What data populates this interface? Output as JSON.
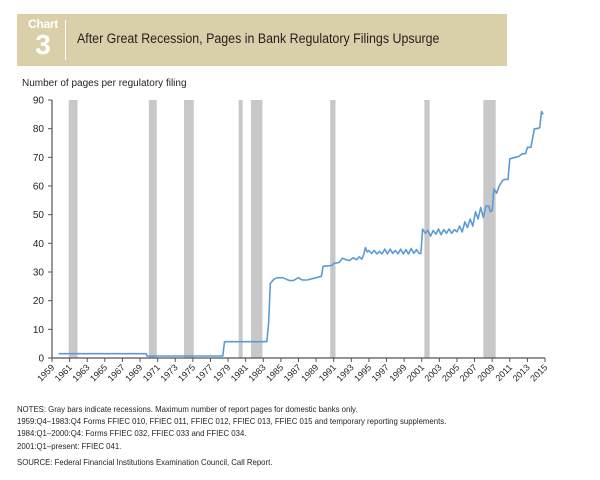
{
  "header": {
    "chart_word": "Chart",
    "chart_number": "3",
    "title": "After Great Recession, Pages in Bank Regulatory Filings Upsurge",
    "background_color": "#d9cfa8"
  },
  "chart_data": {
    "type": "line",
    "title": "After Great Recession, Pages in Bank Regulatory Filings Upsurge",
    "ylabel": "Number of pages per regulatory filing",
    "xlabel": "",
    "xlim": [
      1959,
      2015
    ],
    "ylim": [
      0,
      90
    ],
    "yticks": [
      0,
      10,
      20,
      30,
      40,
      50,
      60,
      70,
      80,
      90
    ],
    "xticks": [
      "1959",
      "1961",
      "1963",
      "1965",
      "1967",
      "1969",
      "1971",
      "1973",
      "1975",
      "1977",
      "1979",
      "1981",
      "1983",
      "1985",
      "1987",
      "1989",
      "1991",
      "1993",
      "1995",
      "1997",
      "1999",
      "2001",
      "2003",
      "2005",
      "2007",
      "2009",
      "2011",
      "2013",
      "2015"
    ],
    "line_color": "#5b9bd5",
    "recession_color": "#c8c8c8",
    "recessions": [
      [
        1960.9,
        1961.9
      ],
      [
        1970.0,
        1970.9
      ],
      [
        1974.0,
        1975.1
      ],
      [
        1980.2,
        1980.6
      ],
      [
        1981.6,
        1982.9
      ],
      [
        1990.6,
        1991.2
      ],
      [
        2001.3,
        2001.9
      ],
      [
        2008.0,
        2009.4
      ]
    ],
    "series": [
      {
        "name": "Pages per filing",
        "x": [
          1959.75,
          1969.7,
          1969.8,
          1978.4,
          1978.6,
          1983.4,
          1983.6,
          1983.8,
          1984.2,
          1984.6,
          1985.2,
          1985.6,
          1986.0,
          1986.4,
          1987.0,
          1987.4,
          1988.0,
          1989.6,
          1989.8,
          1990.8,
          1991.0,
          1991.6,
          1992.0,
          1992.4,
          1992.8,
          1993.2,
          1993.6,
          1993.9,
          1994.2,
          1994.4,
          1994.6,
          1994.8,
          1995.0,
          1995.3,
          1995.6,
          1995.9,
          1996.2,
          1996.5,
          1996.8,
          1997.1,
          1997.4,
          1997.7,
          1998.0,
          1998.3,
          1998.6,
          1998.9,
          1999.2,
          1999.5,
          1999.8,
          2000.1,
          2000.4,
          2000.7,
          2000.9,
          2001.1,
          2001.4,
          2001.7,
          2002.0,
          2002.3,
          2002.6,
          2002.9,
          2003.2,
          2003.5,
          2003.8,
          2004.1,
          2004.4,
          2004.7,
          2005.0,
          2005.3,
          2005.6,
          2005.9,
          2006.2,
          2006.5,
          2006.8,
          2007.1,
          2007.4,
          2007.7,
          2008.0,
          2008.3,
          2008.6,
          2008.8,
          2009.0,
          2009.2,
          2009.5,
          2009.8,
          2010.2,
          2010.5,
          2010.8,
          2011.0,
          2011.6,
          2012.0,
          2012.4,
          2012.8,
          2013.0,
          2013.4,
          2013.8,
          2014.0,
          2014.4,
          2014.6,
          2014.8
        ],
        "y": [
          1.5,
          1.5,
          0.7,
          0.7,
          5.7,
          5.7,
          12,
          26,
          27.5,
          28,
          28,
          27.5,
          27,
          27,
          28,
          27.2,
          27.2,
          28.5,
          32,
          32.3,
          33,
          33.3,
          34.8,
          34.3,
          34,
          35,
          34.3,
          35.3,
          34.5,
          36,
          38.5,
          37,
          37.5,
          36.5,
          37.5,
          36.3,
          37.2,
          36.3,
          38,
          36.3,
          38,
          36.5,
          37.5,
          36.3,
          38,
          36.3,
          37.8,
          36.3,
          38.2,
          36.5,
          37.8,
          36.5,
          36.5,
          45,
          43.5,
          44.5,
          42.5,
          44.5,
          43.2,
          45,
          43,
          44.8,
          43.5,
          45,
          43.5,
          44.8,
          44,
          46,
          44,
          47.5,
          45.5,
          48.5,
          46,
          51,
          48.5,
          52.5,
          49,
          53,
          53,
          51,
          51.5,
          59,
          57.5,
          60,
          62,
          62.3,
          62.3,
          69.5,
          70,
          70.3,
          71.2,
          71.3,
          73.5,
          73.5,
          80,
          80,
          80.3,
          86,
          85
        ]
      }
    ]
  },
  "notes": {
    "line1": "NOTES: Gray bars indicate recessions. Maximum number of report pages for domestic banks only.",
    "line2": "1959:Q4–1983:Q4 Forms FFIEC 010, FFIEC 011, FFIEC 012, FFIEC 013, FFIEC 015 and temporary reporting supplements.",
    "line3": "1984:Q1–2000:Q4: Forms FFIEC 032, FFIEC 033 and FFIEC 034.",
    "line4": "2001:Q1–present: FFIEC 041.",
    "source": "SOURCE: Federal Financial Institutions Examination Council, Call Report."
  }
}
